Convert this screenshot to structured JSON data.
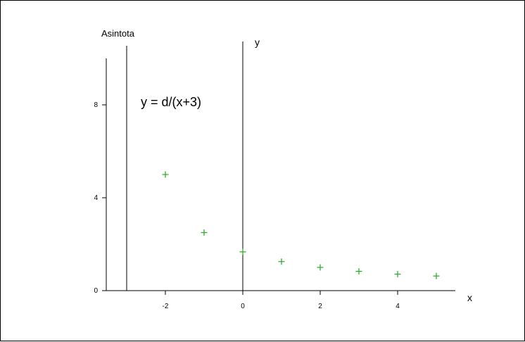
{
  "chart_data": {
    "type": "scatter",
    "title": "",
    "xlabel": "x",
    "ylabel": "y",
    "xlim": [
      -3.5,
      5.5
    ],
    "ylim": [
      0,
      10
    ],
    "xticks": [
      -2,
      0,
      2,
      4
    ],
    "yticks": [
      0,
      4,
      8
    ],
    "grid": false,
    "asymptote": {
      "x": -3,
      "label": "Asintota"
    },
    "annotation": "y = d/(x+3)",
    "marker": "+",
    "series": [
      {
        "color": "#22aa22",
        "x": [
          -2,
          -1,
          0,
          1,
          2,
          3,
          4,
          5
        ],
        "y": [
          5.0,
          2.5,
          1.67,
          1.25,
          1.0,
          0.83,
          0.71,
          0.63
        ]
      }
    ]
  }
}
